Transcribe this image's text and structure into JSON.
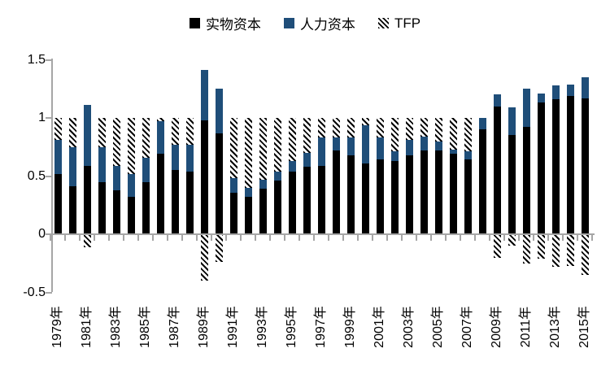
{
  "legend": {
    "items": [
      {
        "label": "实物资本",
        "swatch": "solid-black"
      },
      {
        "label": "人力资本",
        "swatch": "solid-blue"
      },
      {
        "label": "TFP",
        "swatch": "diagonal-hatch"
      }
    ]
  },
  "colors": {
    "physical_capital": "#000000",
    "human_capital": "#1F4E79",
    "hatch_foreground": "#000000",
    "axis": "#A6A6A6",
    "background": "#FFFFFF"
  },
  "chart_data": {
    "type": "bar",
    "stacked": true,
    "title": "",
    "xlabel": "",
    "ylabel": "",
    "grid": false,
    "legend_position": "top",
    "ylim": [
      -0.5,
      1.5
    ],
    "y_tick_labels": [
      "1.5",
      "1",
      "0.5",
      "0",
      "-0.5"
    ],
    "y_tick_values": [
      1.5,
      1,
      0.5,
      0,
      -0.5
    ],
    "x": [
      1979,
      1980,
      1981,
      1982,
      1983,
      1984,
      1985,
      1986,
      1987,
      1988,
      1989,
      1990,
      1991,
      1992,
      1993,
      1994,
      1995,
      1996,
      1997,
      1998,
      1999,
      2000,
      2001,
      2002,
      2003,
      2004,
      2005,
      2006,
      2007,
      2008,
      2009,
      2010,
      2011,
      2012,
      2013,
      2014,
      2015
    ],
    "x_tick_labels": [
      "1979年",
      "1981年",
      "1983年",
      "1985年",
      "1987年",
      "1989年",
      "1991年",
      "1993年",
      "1995年",
      "1997年",
      "1999年",
      "2001年",
      "2003年",
      "2005年",
      "2007年",
      "2009年",
      "2011年",
      "2013年",
      "2015年"
    ],
    "series": [
      {
        "name": "实物资本",
        "color": "#000000",
        "values": [
          0.52,
          0.41,
          0.59,
          0.45,
          0.38,
          0.32,
          0.45,
          0.69,
          0.55,
          0.54,
          0.98,
          0.87,
          0.36,
          0.32,
          0.39,
          0.46,
          0.54,
          0.58,
          0.59,
          0.72,
          0.68,
          0.61,
          0.64,
          0.63,
          0.68,
          0.72,
          0.72,
          0.69,
          0.64,
          0.9,
          1.1,
          0.85,
          0.92,
          1.13,
          1.16,
          1.19,
          1.17
        ]
      },
      {
        "name": "人力资本",
        "color": "#1F4E79",
        "values": [
          0.29,
          0.34,
          0.52,
          0.3,
          0.21,
          0.2,
          0.21,
          0.28,
          0.22,
          0.23,
          0.43,
          0.38,
          0.12,
          0.08,
          0.08,
          0.08,
          0.09,
          0.12,
          0.24,
          0.11,
          0.15,
          0.33,
          0.19,
          0.08,
          0.13,
          0.12,
          0.08,
          0.04,
          0.07,
          0.1,
          0.1,
          0.24,
          0.33,
          0.08,
          0.12,
          0.1,
          0.18
        ]
      },
      {
        "name": "TFP",
        "pattern": "diagonal-hatch",
        "values": [
          0.19,
          0.25,
          -0.11,
          0.25,
          0.41,
          0.48,
          0.34,
          0.03,
          0.23,
          0.23,
          -0.4,
          -0.24,
          0.52,
          0.6,
          0.53,
          0.46,
          0.37,
          0.3,
          0.17,
          0.17,
          0.17,
          0.06,
          0.17,
          0.29,
          0.19,
          0.16,
          0.2,
          0.27,
          0.29,
          0.0,
          -0.2,
          -0.1,
          -0.25,
          -0.21,
          -0.28,
          -0.27,
          -0.35
        ]
      }
    ]
  }
}
